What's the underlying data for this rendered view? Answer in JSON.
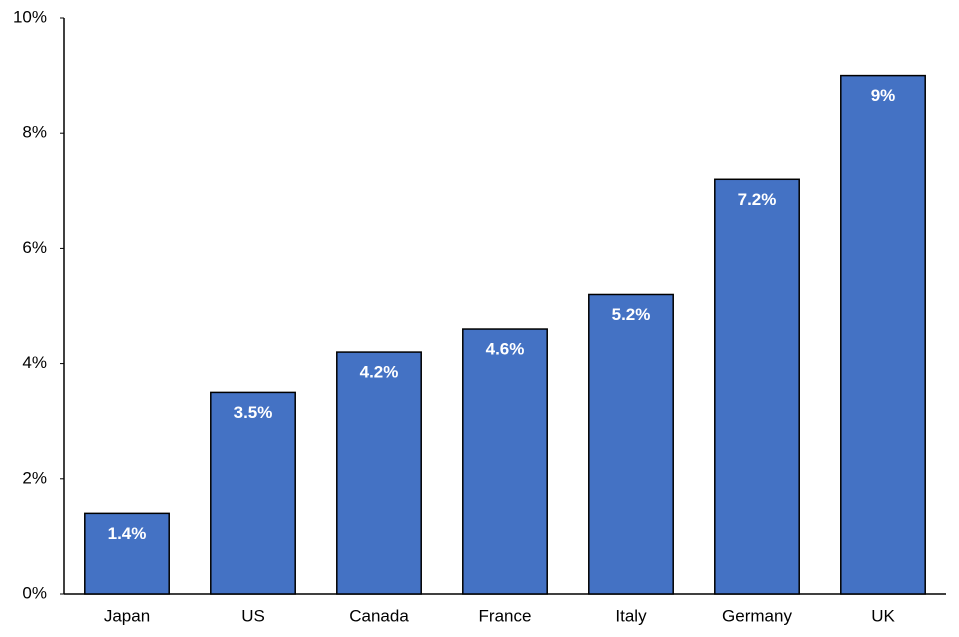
{
  "chart_data": {
    "type": "bar",
    "categories": [
      "Japan",
      "US",
      "Canada",
      "France",
      "Italy",
      "Germany",
      "UK"
    ],
    "values": [
      1.4,
      3.5,
      4.2,
      4.6,
      5.2,
      7.2,
      9
    ],
    "value_labels": [
      "1.4%",
      "3.5%",
      "4.2%",
      "4.6%",
      "5.2%",
      "7.2%",
      "9%"
    ],
    "color": "#4472c4",
    "ylim": [
      0,
      10
    ],
    "yticks": [
      {
        "value": 0,
        "label": "0%"
      },
      {
        "value": 2,
        "label": "2%"
      },
      {
        "value": 4,
        "label": "4%"
      },
      {
        "value": 6,
        "label": "6%"
      },
      {
        "value": 8,
        "label": "8%"
      },
      {
        "value": 10,
        "label": "10%"
      }
    ],
    "grid": false
  }
}
